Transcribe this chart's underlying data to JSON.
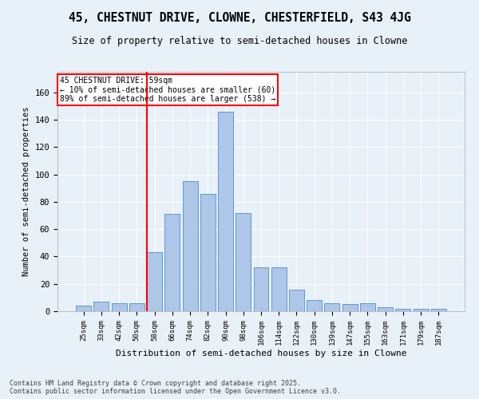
{
  "title": "45, CHESTNUT DRIVE, CLOWNE, CHESTERFIELD, S43 4JG",
  "subtitle": "Size of property relative to semi-detached houses in Clowne",
  "xlabel": "Distribution of semi-detached houses by size in Clowne",
  "ylabel": "Number of semi-detached properties",
  "bins": [
    "25sqm",
    "33sqm",
    "42sqm",
    "50sqm",
    "58sqm",
    "66sqm",
    "74sqm",
    "82sqm",
    "90sqm",
    "98sqm",
    "106sqm",
    "114sqm",
    "122sqm",
    "130sqm",
    "139sqm",
    "147sqm",
    "155sqm",
    "163sqm",
    "171sqm",
    "179sqm",
    "187sqm"
  ],
  "values": [
    4,
    7,
    6,
    6,
    43,
    71,
    95,
    86,
    146,
    72,
    32,
    32,
    16,
    8,
    6,
    5,
    6,
    3,
    2,
    2,
    2
  ],
  "bar_color": "#aec6e8",
  "bar_edge_color": "#5b9bd5",
  "vline_color": "red",
  "annotation_title": "45 CHESTNUT DRIVE: 59sqm",
  "annotation_line1": "← 10% of semi-detached houses are smaller (60)",
  "annotation_line2": "89% of semi-detached houses are larger (538) →",
  "annotation_box_color": "white",
  "annotation_box_edge": "red",
  "bg_color": "#e8f0f8",
  "grid_color": "white",
  "ylim": [
    0,
    175
  ],
  "yticks": [
    0,
    20,
    40,
    60,
    80,
    100,
    120,
    140,
    160
  ],
  "footer_line1": "Contains HM Land Registry data © Crown copyright and database right 2025.",
  "footer_line2": "Contains public sector information licensed under the Open Government Licence v3.0."
}
